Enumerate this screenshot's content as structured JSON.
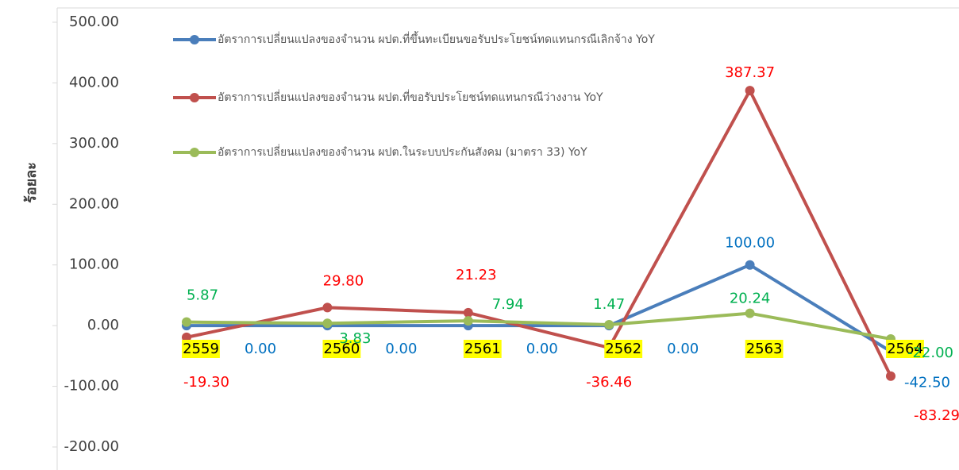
{
  "chart_data": {
    "type": "line",
    "y_label": "ร้อยละ",
    "categories": [
      "2559",
      "2560",
      "2561",
      "2562",
      "2563",
      "2564"
    ],
    "ylim": [
      -200,
      500
    ],
    "yticks": [
      {
        "value": -200,
        "label": "-200.00"
      },
      {
        "value": -100,
        "label": "-100.00"
      },
      {
        "value": 0,
        "label": "0.00"
      },
      {
        "value": 100,
        "label": "100.00"
      },
      {
        "value": 200,
        "label": "200.00"
      },
      {
        "value": 300,
        "label": "300.00"
      },
      {
        "value": 400,
        "label": "400.00"
      },
      {
        "value": 500,
        "label": "500.00"
      }
    ],
    "series": [
      {
        "name": "อัตราการเปลี่ยนแปลงของจำนวน ผปต.ที่ขึ้นทะเบียนขอรับประโยชน์ทดแทนกรณีเลิกจ้าง YoY",
        "color": "#4a7ebb",
        "label_color": "#0070c0",
        "values": [
          0,
          0,
          0,
          0,
          100,
          -42.5
        ],
        "value_labels": [
          "0.00",
          "0.00",
          "0.00",
          "0.00",
          "100.00",
          "-42.50"
        ]
      },
      {
        "name": "อัตราการเปลี่ยนแปลงของจำนวน ผปต.ที่ขอรับประโยชน์ทดแทนกรณีว่างงาน YoY",
        "color": "#c0504d",
        "label_color": "#ff0000",
        "values": [
          -19.3,
          29.8,
          21.23,
          -36.46,
          387.37,
          -83.29
        ],
        "value_labels": [
          "-19.30",
          "29.80",
          "21.23",
          "-36.46",
          "387.37",
          "-83.29"
        ]
      },
      {
        "name": "อัตราการเปลี่ยนแปลงของจำนวน ผปต.ในระบบประกันสังคม (มาตรา 33) YoY",
        "color": "#9bbb59",
        "label_color": "#00b050",
        "values": [
          5.87,
          3.83,
          7.94,
          1.47,
          20.24,
          -22
        ],
        "value_labels": [
          "5.87",
          "3.83",
          "7.94",
          "1.47",
          "20.24",
          "-22.00"
        ]
      }
    ]
  }
}
